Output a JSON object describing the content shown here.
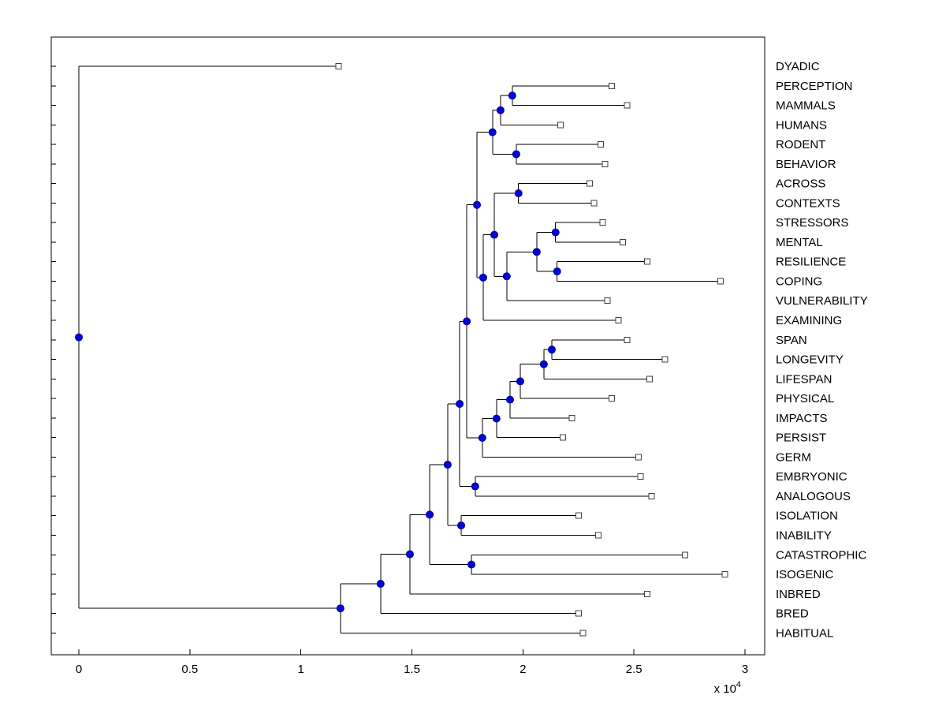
{
  "figure": {
    "background": "#ffffff",
    "axes_box_color": "#000000"
  },
  "chart_data": {
    "type": "dendrogram",
    "orientation": "horizontal",
    "title": "",
    "grid": false,
    "x_axis": {
      "tick_labels": [
        "0",
        "0.5",
        "1",
        "1.5",
        "2",
        "2.5",
        "3"
      ],
      "tick_values": [
        0,
        0.5,
        1,
        1.5,
        2,
        2.5,
        3
      ],
      "multiplier_label": "x 10",
      "multiplier_exponent": "4",
      "range": [
        -0.12,
        3.09
      ]
    },
    "styles": {
      "line_color": "#000000",
      "branch_dot_color": "#0000e0",
      "branch_dot_edge": "#000080",
      "leaf_marker_fill": "#ffffff",
      "leaf_marker_edge": "#404040"
    },
    "leaves": [
      {
        "label": "DYADIC",
        "tip": 1.17
      },
      {
        "label": "PERCEPTION",
        "tip": 2.4
      },
      {
        "label": "MAMMALS",
        "tip": 2.47
      },
      {
        "label": "HUMANS",
        "tip": 2.17
      },
      {
        "label": "RODENT",
        "tip": 2.35
      },
      {
        "label": "BEHAVIOR",
        "tip": 2.37
      },
      {
        "label": "ACROSS",
        "tip": 2.3
      },
      {
        "label": "CONTEXTS",
        "tip": 2.32
      },
      {
        "label": "STRESSORS",
        "tip": 2.36
      },
      {
        "label": "MENTAL",
        "tip": 2.45
      },
      {
        "label": "RESILIENCE",
        "tip": 2.56
      },
      {
        "label": "COPING",
        "tip": 2.89
      },
      {
        "label": "VULNERABILITY",
        "tip": 2.38
      },
      {
        "label": "EXAMINING",
        "tip": 2.43
      },
      {
        "label": "SPAN",
        "tip": 2.47
      },
      {
        "label": "LONGEVITY",
        "tip": 2.64
      },
      {
        "label": "LIFESPAN",
        "tip": 2.57
      },
      {
        "label": "PHYSICAL",
        "tip": 2.4
      },
      {
        "label": "IMPACTS",
        "tip": 2.22
      },
      {
        "label": "PERSIST",
        "tip": 2.18
      },
      {
        "label": "GERM",
        "tip": 2.52
      },
      {
        "label": "EMBRYONIC",
        "tip": 2.53
      },
      {
        "label": "ANALOGOUS",
        "tip": 2.58
      },
      {
        "label": "ISOLATION",
        "tip": 2.25
      },
      {
        "label": "INABILITY",
        "tip": 2.34
      },
      {
        "label": "CATASTROPHIC",
        "tip": 2.73
      },
      {
        "label": "ISOGENIC",
        "tip": 2.91
      },
      {
        "label": "INBRED",
        "tip": 2.56
      },
      {
        "label": "BRED",
        "tip": 2.25
      },
      {
        "label": "HABITUAL",
        "tip": 2.27
      }
    ],
    "tree": {
      "x": 0,
      "c": [
        {
          "leaf": 0
        },
        {
          "x": 1.178,
          "c": [
            {
              "x": 1.359,
              "c": [
                {
                  "x": 1.491,
                  "c": [
                    {
                      "x": 1.58,
                      "c": [
                        {
                          "x": 1.661,
                          "c": [
                            {
                              "x": 1.715,
                              "c": [
                                {
                                  "x": 1.747,
                                  "c": [
                                    {
                                      "x": 1.793,
                                      "c": [
                                        {
                                          "x": 1.863,
                                          "c": [
                                            {
                                              "x": 1.899,
                                              "c": [
                                                {
                                                  "x": 1.952,
                                                  "c": [
                                                    {
                                                      "leaf": 1
                                                    },
                                                    {
                                                      "leaf": 2
                                                    }
                                                  ]
                                                },
                                                {
                                                  "leaf": 3
                                                }
                                              ]
                                            },
                                            {
                                              "x": 1.97,
                                              "c": [
                                                {
                                                  "leaf": 4
                                                },
                                                {
                                                  "leaf": 5
                                                }
                                              ]
                                            }
                                          ]
                                        },
                                        {
                                          "x": 1.821,
                                          "c": [
                                            {
                                              "x": 1.871,
                                              "c": [
                                                {
                                                  "x": 1.98,
                                                  "c": [
                                                    {
                                                      "leaf": 6
                                                    },
                                                    {
                                                      "leaf": 7
                                                    }
                                                  ]
                                                },
                                                {
                                                  "x": 1.927,
                                                  "c": [
                                                    {
                                                      "x": 2.062,
                                                      "c": [
                                                        {
                                                          "x": 2.147,
                                                          "c": [
                                                            {
                                                              "leaf": 8
                                                            },
                                                            {
                                                              "leaf": 9
                                                            }
                                                          ]
                                                        },
                                                        {
                                                          "x": 2.154,
                                                          "c": [
                                                            {
                                                              "leaf": 10
                                                            },
                                                            {
                                                              "leaf": 11
                                                            }
                                                          ]
                                                        }
                                                      ]
                                                    },
                                                    {
                                                      "leaf": 12
                                                    }
                                                  ]
                                                }
                                              ]
                                            },
                                            {
                                              "leaf": 13
                                            }
                                          ]
                                        }
                                      ]
                                    },
                                    {
                                      "x": 1.817,
                                      "c": [
                                        {
                                          "x": 1.881,
                                          "c": [
                                            {
                                              "x": 1.942,
                                              "c": [
                                                {
                                                  "x": 1.988,
                                                  "c": [
                                                    {
                                                      "x": 2.094,
                                                      "c": [
                                                        {
                                                          "x": 2.13,
                                                          "c": [
                                                            {
                                                              "leaf": 14
                                                            },
                                                            {
                                                              "leaf": 15
                                                            }
                                                          ]
                                                        },
                                                        {
                                                          "leaf": 16
                                                        }
                                                      ]
                                                    },
                                                    {
                                                      "leaf": 17
                                                    }
                                                  ]
                                                },
                                                {
                                                  "leaf": 18
                                                }
                                              ]
                                            },
                                            {
                                              "leaf": 19
                                            }
                                          ]
                                        },
                                        {
                                          "leaf": 20
                                        }
                                      ]
                                    }
                                  ]
                                },
                                {
                                  "x": 1.785,
                                  "c": [
                                    {
                                      "leaf": 21
                                    },
                                    {
                                      "leaf": 22
                                    }
                                  ]
                                }
                              ]
                            },
                            {
                              "x": 1.722,
                              "c": [
                                {
                                  "leaf": 23
                                },
                                {
                                  "leaf": 24
                                }
                              ]
                            }
                          ]
                        },
                        {
                          "x": 1.768,
                          "c": [
                            {
                              "leaf": 25
                            },
                            {
                              "leaf": 26
                            }
                          ]
                        }
                      ]
                    },
                    {
                      "leaf": 27
                    }
                  ]
                },
                {
                  "leaf": 28
                }
              ]
            },
            {
              "leaf": 29
            }
          ]
        }
      ]
    }
  }
}
